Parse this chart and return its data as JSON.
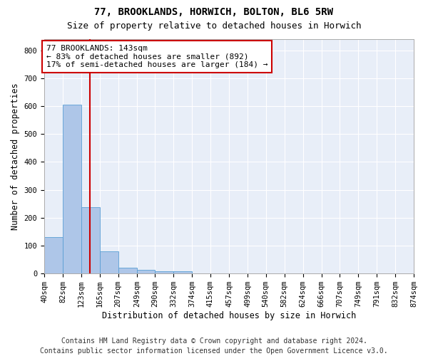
{
  "title": "77, BROOKLANDS, HORWICH, BOLTON, BL6 5RW",
  "subtitle": "Size of property relative to detached houses in Horwich",
  "xlabel": "Distribution of detached houses by size in Horwich",
  "ylabel": "Number of detached properties",
  "bar_color": "#aec6e8",
  "bar_edge_color": "#5a9fd4",
  "background_color": "#e8eef8",
  "grid_color": "#ffffff",
  "fig_background": "#ffffff",
  "marker_line_color": "#cc0000",
  "marker_value": 143,
  "annotation_line1": "77 BROOKLANDS: 143sqm",
  "annotation_line2": "← 83% of detached houses are smaller (892)",
  "annotation_line3": "17% of semi-detached houses are larger (184) →",
  "annotation_box_color": "#ffffff",
  "annotation_box_edge_color": "#cc0000",
  "bin_edges": [
    40,
    82,
    123,
    165,
    207,
    249,
    290,
    332,
    374,
    415,
    457,
    499,
    540,
    582,
    624,
    666,
    707,
    749,
    791,
    832,
    874
  ],
  "bar_heights": [
    130,
    605,
    238,
    80,
    22,
    13,
    9,
    9,
    0,
    0,
    0,
    0,
    0,
    0,
    0,
    0,
    0,
    0,
    0,
    0
  ],
  "ylim": [
    0,
    840
  ],
  "yticks": [
    0,
    100,
    200,
    300,
    400,
    500,
    600,
    700,
    800
  ],
  "footer_line1": "Contains HM Land Registry data © Crown copyright and database right 2024.",
  "footer_line2": "Contains public sector information licensed under the Open Government Licence v3.0.",
  "title_fontsize": 10,
  "subtitle_fontsize": 9,
  "axis_label_fontsize": 8.5,
  "tick_fontsize": 7.5,
  "annotation_fontsize": 8,
  "footer_fontsize": 7
}
